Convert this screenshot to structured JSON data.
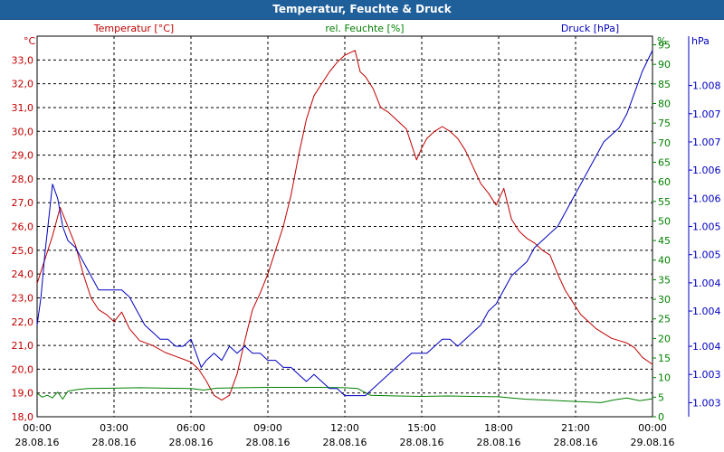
{
  "chart_data": {
    "type": "line",
    "title": "Temperatur, Feuchte & Druck",
    "x_range": [
      0,
      24
    ],
    "x_ticks": [
      {
        "h": 0,
        "time": "00:00",
        "date": "28.08.16"
      },
      {
        "h": 3,
        "time": "03:00",
        "date": "28.08.16"
      },
      {
        "h": 6,
        "time": "06:00",
        "date": "28.08.16"
      },
      {
        "h": 9,
        "time": "09:00",
        "date": "28.08.16"
      },
      {
        "h": 12,
        "time": "12:00",
        "date": "28.08.16"
      },
      {
        "h": 15,
        "time": "15:00",
        "date": "28.08.16"
      },
      {
        "h": 18,
        "time": "18:00",
        "date": "28.08.16"
      },
      {
        "h": 21,
        "time": "21:00",
        "date": "28.08.16"
      },
      {
        "h": 24,
        "time": "00:00",
        "date": "29.08.16"
      }
    ],
    "axes": {
      "temperature": {
        "unit": "°C",
        "label": "Temperatur [°C]",
        "color": "#c00000",
        "range": [
          18,
          34
        ],
        "ticks": [
          "18,0",
          "19,0",
          "20,0",
          "21,0",
          "22,0",
          "23,0",
          "24,0",
          "25,0",
          "26,0",
          "27,0",
          "28,0",
          "29,0",
          "30,0",
          "31,0",
          "32,0",
          "33,0"
        ]
      },
      "humidity": {
        "unit": "%",
        "label": "rel. Feuchte [%]",
        "color": "#008000",
        "range": [
          0,
          97.2
        ],
        "ticks": [
          "0",
          "5",
          "10",
          "15",
          "20",
          "25",
          "30",
          "35",
          "40",
          "45",
          "50",
          "55",
          "60",
          "65",
          "70",
          "75",
          "80",
          "85",
          "90",
          "95"
        ]
      },
      "pressure": {
        "unit": "hPa",
        "label": "Druck [hPa]",
        "color": "#0000c0",
        "range": [
          1002.7,
          1008.1
        ],
        "ticks": [
          "1.003",
          "1.003",
          "1.004",
          "1.004",
          "1.004",
          "1.005",
          "1.005",
          "1.006",
          "1.006",
          "1.007",
          "1.007",
          "1.008"
        ],
        "tick_values": [
          1002.9,
          1003.3,
          1003.7,
          1004.2,
          1004.6,
          1005.0,
          1005.4,
          1005.8,
          1006.2,
          1006.6,
          1007.0,
          1007.4
        ]
      }
    },
    "series": [
      {
        "name": "Temperatur [°C]",
        "axis": "temperature",
        "color": "#c00000",
        "x": [
          0,
          0.3,
          0.6,
          0.9,
          1.2,
          1.5,
          1.8,
          2.1,
          2.4,
          2.7,
          3.0,
          3.3,
          3.6,
          4.0,
          4.5,
          5.0,
          5.5,
          6.0,
          6.3,
          6.6,
          6.9,
          7.2,
          7.5,
          7.8,
          8.1,
          8.4,
          8.7,
          9.0,
          9.3,
          9.6,
          9.9,
          10.2,
          10.5,
          10.8,
          11.1,
          11.4,
          11.7,
          12.0,
          12.2,
          12.4,
          12.6,
          12.8,
          13.1,
          13.4,
          13.7,
          14.0,
          14.4,
          14.8,
          15.0,
          15.2,
          15.5,
          15.8,
          16.1,
          16.4,
          16.7,
          17.0,
          17.3,
          17.6,
          17.9,
          18.2,
          18.5,
          18.8,
          19.1,
          19.4,
          19.7,
          20.0,
          20.3,
          20.6,
          20.9,
          21.2,
          21.5,
          21.8,
          22.1,
          22.4,
          22.7,
          23.0,
          23.3,
          23.6,
          24.0
        ],
        "values": [
          23.6,
          24.6,
          25.6,
          26.8,
          26.0,
          25.2,
          24.0,
          23.0,
          22.5,
          22.3,
          22.0,
          22.4,
          21.7,
          21.2,
          21.0,
          20.7,
          20.5,
          20.3,
          20.0,
          19.5,
          18.9,
          18.7,
          18.9,
          19.8,
          21.2,
          22.5,
          23.2,
          24.0,
          25.0,
          26.0,
          27.3,
          29.0,
          30.5,
          31.5,
          32.0,
          32.5,
          32.9,
          33.2,
          33.3,
          33.4,
          32.5,
          32.3,
          31.8,
          31.0,
          30.8,
          30.5,
          30.1,
          28.8,
          29.3,
          29.7,
          30.0,
          30.2,
          30.0,
          29.7,
          29.2,
          28.5,
          27.8,
          27.4,
          26.9,
          27.6,
          26.3,
          25.8,
          25.5,
          25.3,
          25.0,
          24.8,
          24.0,
          23.3,
          22.8,
          22.3,
          22.0,
          21.7,
          21.5,
          21.3,
          21.2,
          21.1,
          20.9,
          20.5,
          20.2
        ]
      },
      {
        "name": "rel. Feuchte [%]",
        "axis": "humidity",
        "color": "#008000",
        "x": [
          0,
          0.2,
          0.4,
          0.6,
          0.8,
          1.0,
          1.2,
          1.6,
          2.0,
          3.0,
          4.0,
          5.0,
          6.0,
          6.5,
          7.0,
          8.0,
          9.0,
          10.0,
          11.0,
          12.0,
          12.5,
          13.0,
          14.0,
          15.0,
          16.0,
          17.0,
          18.0,
          18.5,
          19.0,
          20.0,
          21.0,
          22.0,
          22.5,
          23.0,
          23.5,
          24.0
        ],
        "values": [
          6,
          5,
          5.5,
          4.8,
          6.3,
          4.5,
          6.5,
          7,
          7.2,
          7.3,
          7.4,
          7.3,
          7.2,
          6.8,
          7.3,
          7.4,
          7.5,
          7.5,
          7.5,
          7.4,
          7.2,
          5.5,
          5.3,
          5.2,
          5.3,
          5.2,
          5.1,
          4.8,
          4.5,
          4.2,
          3.9,
          3.6,
          4.3,
          4.8,
          4.1,
          4.6
        ]
      },
      {
        "name": "Druck [hPa]",
        "axis": "pressure",
        "color": "#0000c0",
        "x": [
          0,
          0.15,
          0.3,
          0.45,
          0.6,
          0.8,
          1.0,
          1.2,
          1.5,
          1.8,
          2.1,
          2.4,
          2.7,
          3.0,
          3.3,
          3.6,
          3.9,
          4.2,
          4.5,
          4.8,
          5.1,
          5.4,
          5.7,
          6.0,
          6.2,
          6.4,
          6.6,
          6.9,
          7.2,
          7.5,
          7.8,
          8.1,
          8.4,
          8.7,
          9.0,
          9.3,
          9.6,
          9.9,
          10.2,
          10.5,
          10.8,
          11.1,
          11.4,
          11.7,
          12.0,
          12.3,
          12.6,
          12.8,
          13.1,
          13.4,
          13.7,
          14.0,
          14.3,
          14.6,
          14.9,
          15.2,
          15.5,
          15.8,
          16.1,
          16.4,
          16.7,
          17.0,
          17.3,
          17.6,
          17.9,
          18.2,
          18.5,
          18.8,
          19.1,
          19.4,
          19.7,
          20.0,
          20.3,
          20.6,
          20.9,
          21.2,
          21.5,
          21.8,
          22.1,
          22.4,
          22.7,
          23.0,
          23.3,
          23.6,
          24.0
        ],
        "values": [
          1004.0,
          1004.4,
          1005.0,
          1005.5,
          1006.0,
          1005.8,
          1005.4,
          1005.2,
          1005.1,
          1004.9,
          1004.7,
          1004.5,
          1004.5,
          1004.5,
          1004.5,
          1004.4,
          1004.2,
          1004.0,
          1003.9,
          1003.8,
          1003.8,
          1003.7,
          1003.7,
          1003.8,
          1003.6,
          1003.4,
          1003.5,
          1003.6,
          1003.5,
          1003.7,
          1003.6,
          1003.7,
          1003.6,
          1003.6,
          1003.5,
          1003.5,
          1003.4,
          1003.4,
          1003.3,
          1003.2,
          1003.3,
          1003.2,
          1003.1,
          1003.1,
          1003.0,
          1003.0,
          1003.0,
          1003.0,
          1003.1,
          1003.2,
          1003.3,
          1003.4,
          1003.5,
          1003.6,
          1003.6,
          1003.6,
          1003.7,
          1003.8,
          1003.8,
          1003.7,
          1003.8,
          1003.9,
          1004.0,
          1004.2,
          1004.3,
          1004.5,
          1004.7,
          1004.8,
          1004.9,
          1005.1,
          1005.2,
          1005.3,
          1005.4,
          1005.6,
          1005.8,
          1006.0,
          1006.2,
          1006.4,
          1006.6,
          1006.7,
          1006.8,
          1007.0,
          1007.3,
          1007.6,
          1007.9
        ]
      }
    ],
    "grid": true,
    "legend": "top"
  }
}
